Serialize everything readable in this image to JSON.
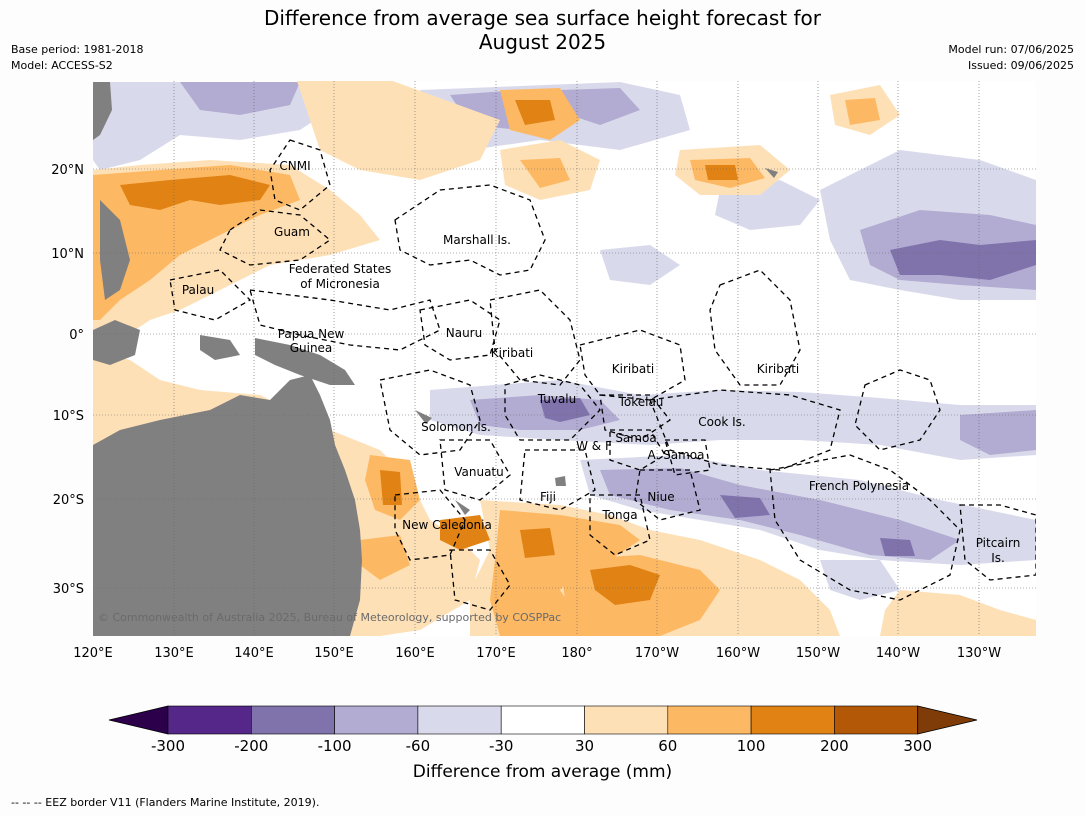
{
  "title_line1": "Difference from average sea surface height forecast for",
  "title_line2": "August 2025",
  "meta": {
    "base_period": "Base period: 1981-2018",
    "model": "Model: ACCESS-S2",
    "model_run": "Model run: 07/06/2025",
    "issued": "Issued: 09/06/2025"
  },
  "map": {
    "lon_ticks": [
      "120°E",
      "130°E",
      "140°E",
      "150°E",
      "160°E",
      "170°E",
      "180°",
      "170°W",
      "160°W",
      "150°W",
      "140°W",
      "130°W"
    ],
    "lat_ticks": [
      "20°N",
      "10°N",
      "0°",
      "10°S",
      "20°S",
      "30°S"
    ],
    "place_labels": [
      {
        "id": "cnmi",
        "text": "CNMI"
      },
      {
        "id": "guam",
        "text": "Guam"
      },
      {
        "id": "marshall",
        "text": "Marshall Is."
      },
      {
        "id": "fsm1",
        "text": "Federated States"
      },
      {
        "id": "fsm2",
        "text": "of Micronesia"
      },
      {
        "id": "palau",
        "text": "Palau"
      },
      {
        "id": "png1",
        "text": "Papua New"
      },
      {
        "id": "png2",
        "text": "Guinea"
      },
      {
        "id": "nauru",
        "text": "Nauru"
      },
      {
        "id": "kiribati1",
        "text": "Kiribati"
      },
      {
        "id": "kiribati2",
        "text": "Kiribati"
      },
      {
        "id": "kiribati3",
        "text": "Kiribati"
      },
      {
        "id": "tuvalu",
        "text": "Tuvalu"
      },
      {
        "id": "tokelau",
        "text": "Tokelau"
      },
      {
        "id": "solomon",
        "text": "Solomon Is."
      },
      {
        "id": "cook",
        "text": "Cook Is."
      },
      {
        "id": "samoa",
        "text": "Samoa"
      },
      {
        "id": "wf",
        "text": "W & F"
      },
      {
        "id": "asamoa",
        "text": "A. Samoa"
      },
      {
        "id": "vanuatu",
        "text": "Vanuatu"
      },
      {
        "id": "fiji",
        "text": "Fiji"
      },
      {
        "id": "niue",
        "text": "Niue"
      },
      {
        "id": "tonga",
        "text": "Tonga"
      },
      {
        "id": "frenchpoly",
        "text": "French Polynesia"
      },
      {
        "id": "newcal",
        "text": "New Caledonia"
      },
      {
        "id": "pitcairn1",
        "text": "Pitcairn"
      },
      {
        "id": "pitcairn2",
        "text": "Is."
      }
    ],
    "copyright": "© Commonwealth of Australia 2025, Bureau of Meteorology, supported by COSPPac",
    "land_color": "#808080"
  },
  "colorbar": {
    "title": "Difference from average (mm)",
    "tick_labels": [
      "-300",
      "-200",
      "-100",
      "-60",
      "-30",
      "30",
      "60",
      "100",
      "200",
      "300"
    ],
    "colors": [
      "#2d004b",
      "#542788",
      "#8073ac",
      "#b2abd2",
      "#d8daeb",
      "#ffffff",
      "#fee0b6",
      "#fdb863",
      "#e08214",
      "#b35806",
      "#7f3b08"
    ]
  },
  "footer": "--  --  -- EEZ border V11 (Flanders Marine Institute, 2019)."
}
